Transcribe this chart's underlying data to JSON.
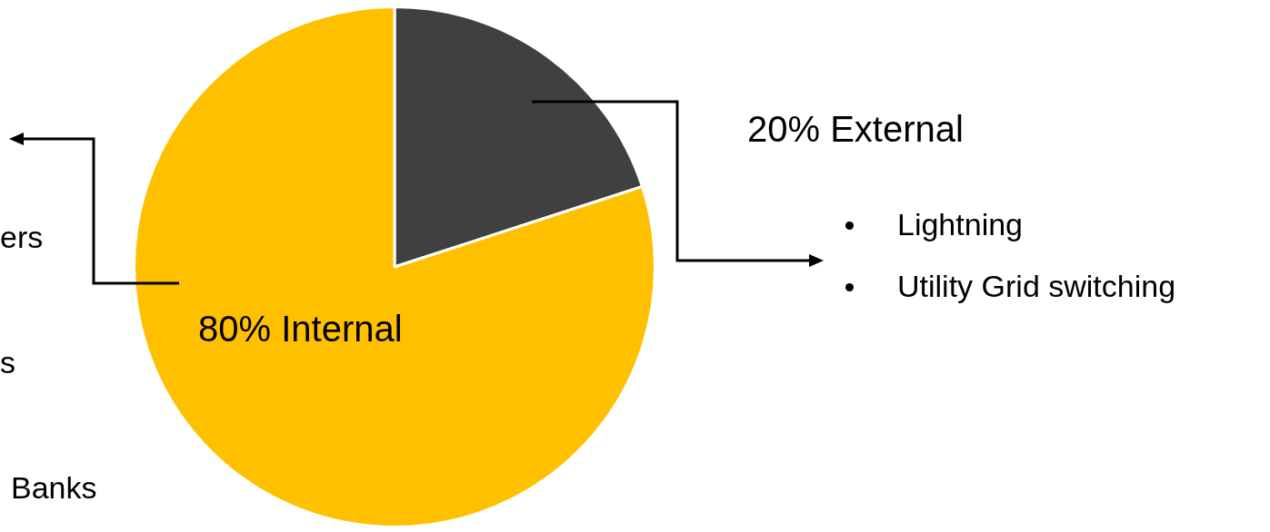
{
  "chart_data": {
    "type": "pie",
    "categories": [
      "20% External",
      "80% Internal"
    ],
    "values": [
      20,
      80
    ],
    "colors": [
      "#404040",
      "#ffc000"
    ],
    "legend": false,
    "annotations": [
      "Lightning",
      "Utility Grid switching",
      "ers",
      "s",
      "Banks"
    ]
  }
}
